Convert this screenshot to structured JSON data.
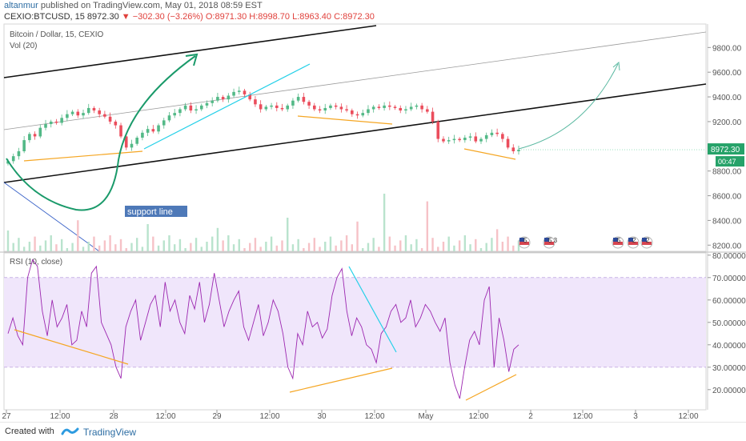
{
  "header": {
    "user": "altanmur",
    "published_text": "published on TradingView.com, May 01, 2018 08:59 EST",
    "symbol": "CEXIO:BTCUSD, 15",
    "last": "8972.30",
    "change": "−302.30 (−3.26%)",
    "ohlc": "O:8971.30 H:8998.70 L:8963.40 C:8972.30"
  },
  "footer": {
    "created_with": "Created with",
    "brand": "TradingView"
  },
  "colors": {
    "candle_up": "#53b987",
    "candle_down": "#eb4d5c",
    "rsi_line": "#9c27b0",
    "rsi_band": "#f0e6fb",
    "orange_trend": "#f5a623",
    "cyan_trend": "#25d0e8",
    "arrow_green": "#1a9a6a",
    "channel": "#111111"
  },
  "chart_data": [
    {
      "type": "candlestick",
      "title": "Bitcoin / Dollar, 15, CEXIO",
      "volume_label": "Vol (20)",
      "x_ticks": [
        "27",
        "12:00",
        "28",
        "12:00",
        "29",
        "12:00",
        "30",
        "12:00",
        "May",
        "12:00",
        "2",
        "12:00",
        "3",
        "12:00"
      ],
      "y_ticks": [
        9800,
        9600,
        9400,
        9200,
        9000,
        8800,
        8600,
        8400,
        8200
      ],
      "ylim": [
        8150,
        9990
      ],
      "last_price": "8972.30",
      "countdown": "00:47",
      "annotation": "support line",
      "event_badges": [
        "5",
        "5 3",
        "5",
        "2",
        "2"
      ],
      "closes": [
        8880,
        8920,
        8960,
        9050,
        9100,
        9080,
        9150,
        9180,
        9200,
        9190,
        9230,
        9260,
        9280,
        9250,
        9270,
        9310,
        9290,
        9260,
        9240,
        9200,
        9170,
        9080,
        8990,
        9020,
        9070,
        9110,
        9140,
        9120,
        9170,
        9210,
        9250,
        9270,
        9300,
        9330,
        9290,
        9300,
        9330,
        9350,
        9370,
        9400,
        9380,
        9410,
        9440,
        9450,
        9420,
        9380,
        9340,
        9300,
        9320,
        9330,
        9310,
        9300,
        9330,
        9370,
        9400,
        9360,
        9330,
        9300,
        9290,
        9310,
        9330,
        9320,
        9300,
        9290,
        9260,
        9250,
        9270,
        9300,
        9320,
        9310,
        9330,
        9320,
        9310,
        9290,
        9300,
        9320,
        9330,
        9300,
        9280,
        9200,
        9060,
        9040,
        9050,
        9060,
        9050,
        9070,
        9080,
        9040,
        9060,
        9090,
        9110,
        9100,
        9060,
        8990,
        8960,
        8972
      ]
    },
    {
      "type": "line",
      "title": "RSI (10, close)",
      "y_ticks": [
        80,
        70,
        60,
        50,
        40,
        30,
        20
      ],
      "ylim": [
        11,
        81
      ],
      "band": [
        30,
        70
      ],
      "values": [
        45,
        52,
        44,
        40,
        70,
        78,
        75,
        55,
        44,
        60,
        48,
        52,
        58,
        40,
        42,
        55,
        48,
        72,
        75,
        50,
        45,
        40,
        30,
        25,
        48,
        55,
        60,
        42,
        50,
        58,
        62,
        48,
        68,
        55,
        60,
        50,
        45,
        62,
        56,
        68,
        50,
        58,
        72,
        60,
        48,
        55,
        60,
        64,
        48,
        42,
        50,
        58,
        44,
        50,
        60,
        55,
        45,
        30,
        25,
        45,
        40,
        55,
        48,
        50,
        43,
        47,
        62,
        70,
        74,
        55,
        44,
        52,
        48,
        40,
        38,
        32,
        45,
        48,
        55,
        58,
        50,
        52,
        60,
        48,
        52,
        58,
        55,
        50,
        46,
        52,
        32,
        22,
        16,
        30,
        42,
        46,
        40,
        60,
        66,
        30,
        52,
        42,
        28,
        38,
        40
      ]
    }
  ]
}
